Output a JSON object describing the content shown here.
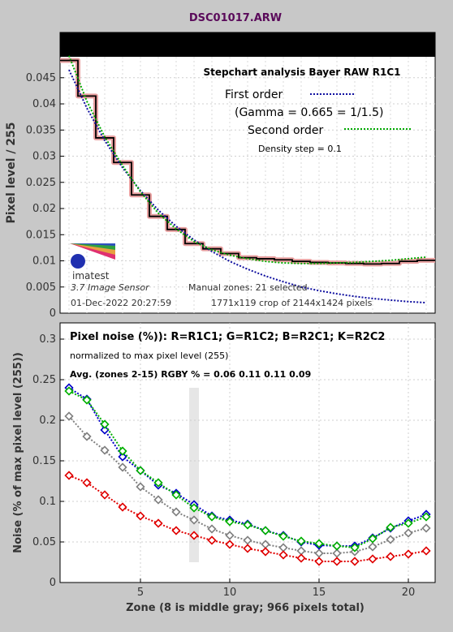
{
  "window": {
    "title": "DSC01017.ARW"
  },
  "chart_data": [
    {
      "type": "line",
      "ylabel": "Pixel level / 255",
      "ylim": [
        0,
        0.049
      ],
      "xlim": [
        0.5,
        21.5
      ],
      "grid": true,
      "yticks": [
        0,
        0.005,
        0.01,
        0.015,
        0.02,
        0.025,
        0.03,
        0.035,
        0.04,
        0.045
      ],
      "ytick_labels": [
        "0",
        "0.005",
        "0.01",
        "0.015",
        "0.02",
        "0.025",
        "0.03",
        "0.035",
        "0.04",
        "0.045"
      ],
      "title": "Stepchart analysis  Bayer RAW R1C1",
      "legend": {
        "first_order": "First order",
        "gamma": "(Gamma = 0.665 = 1/1.5)",
        "second_order": "Second order",
        "density_step": "Density step = 0.1"
      },
      "annotations": {
        "logo_text": "imatest",
        "version": "3.7  Image Sensor",
        "zones_info": "Manual zones:  21 selected",
        "timestamp": "01-Dec-2022 20:27:59",
        "crop": "1771x119 crop of 2144x1424 pixels"
      },
      "colors": {
        "first_order": "#1010a0",
        "second_order": "#00aa00",
        "measured": "#000000",
        "measured_band": "#e8a0a0"
      },
      "series": [
        {
          "name": "Measured",
          "x": [
            1,
            2,
            3,
            4,
            5,
            6,
            7,
            8,
            9,
            10,
            11,
            12,
            13,
            14,
            15,
            16,
            17,
            18,
            19,
            20,
            21
          ],
          "values": [
            0.0483,
            0.0415,
            0.0335,
            0.0288,
            0.0226,
            0.0185,
            0.016,
            0.0133,
            0.0123,
            0.0114,
            0.0106,
            0.0104,
            0.0102,
            0.0099,
            0.0097,
            0.0096,
            0.0095,
            0.0094,
            0.0095,
            0.0099,
            0.0101
          ]
        },
        {
          "name": "First order",
          "x": [
            1,
            2,
            3,
            4,
            5,
            6,
            7,
            8,
            9,
            10,
            11,
            12,
            13,
            14,
            15,
            16,
            17,
            18,
            19,
            20,
            21
          ],
          "values": [
            0.0465,
            0.0392,
            0.033,
            0.0278,
            0.0234,
            0.0197,
            0.0166,
            0.014,
            0.0118,
            0.0099,
            0.0084,
            0.0071,
            0.006,
            0.005,
            0.0043,
            0.0037,
            0.0032,
            0.0028,
            0.0025,
            0.0022,
            0.002
          ]
        },
        {
          "name": "Second order",
          "x": [
            1,
            2,
            3,
            4,
            5,
            6,
            7,
            8,
            9,
            10,
            11,
            12,
            13,
            14,
            15,
            16,
            17,
            18,
            19,
            20,
            21
          ],
          "values": [
            0.0492,
            0.0405,
            0.0337,
            0.0282,
            0.0232,
            0.0191,
            0.0161,
            0.0137,
            0.0121,
            0.0111,
            0.0104,
            0.0099,
            0.0096,
            0.0095,
            0.0095,
            0.0096,
            0.0097,
            0.0099,
            0.0101,
            0.0104,
            0.0107
          ]
        }
      ]
    },
    {
      "type": "line",
      "xlabel": "Zone  (8 is middle gray;  966 pixels total)",
      "ylabel": "Noise (% of max pixel level (255))",
      "ylim": [
        0,
        0.32
      ],
      "xlim": [
        0.5,
        21.5
      ],
      "grid": true,
      "xticks": [
        5,
        10,
        15,
        20
      ],
      "xtick_labels": [
        "5",
        "10",
        "15",
        "20"
      ],
      "yticks": [
        0,
        0.05,
        0.1,
        0.15,
        0.2,
        0.25,
        0.3
      ],
      "ytick_labels": [
        "0",
        "0.05",
        "0.1",
        "0.15",
        "0.2",
        "0.25",
        "0.3"
      ],
      "title": "Pixel noise (%)): R=R1C1; G=R1C2; B=R2C1; K=R2C2",
      "subtitle": "normalized to max pixel level (255)",
      "avg": "Avg. (zones 2-15) RGBY % = 0.06  0.11  0.11  0.09",
      "highlight_zone": 8,
      "colors": {
        "R": "#e00000",
        "G": "#00b000",
        "B": "#0000c8",
        "K": "#808080",
        "highlight": "#e6e6e6"
      },
      "x": [
        1,
        2,
        3,
        4,
        5,
        6,
        7,
        8,
        9,
        10,
        11,
        12,
        13,
        14,
        15,
        16,
        17,
        18,
        19,
        20,
        21
      ],
      "series": [
        {
          "name": "R",
          "values": [
            0.132,
            0.123,
            0.108,
            0.093,
            0.082,
            0.073,
            0.064,
            0.058,
            0.052,
            0.047,
            0.042,
            0.038,
            0.034,
            0.03,
            0.026,
            0.026,
            0.026,
            0.029,
            0.032,
            0.035,
            0.039
          ]
        },
        {
          "name": "G",
          "values": [
            0.236,
            0.225,
            0.195,
            0.162,
            0.138,
            0.123,
            0.108,
            0.092,
            0.081,
            0.075,
            0.071,
            0.064,
            0.057,
            0.051,
            0.048,
            0.045,
            0.043,
            0.054,
            0.068,
            0.073,
            0.081
          ]
        },
        {
          "name": "B",
          "values": [
            0.24,
            0.226,
            0.188,
            0.155,
            0.138,
            0.12,
            0.11,
            0.096,
            0.082,
            0.077,
            0.072,
            0.064,
            0.058,
            0.05,
            0.046,
            0.045,
            0.045,
            0.055,
            0.067,
            0.076,
            0.084
          ]
        },
        {
          "name": "K",
          "values": [
            0.205,
            0.18,
            0.163,
            0.142,
            0.118,
            0.102,
            0.087,
            0.077,
            0.066,
            0.058,
            0.052,
            0.047,
            0.043,
            0.039,
            0.036,
            0.036,
            0.038,
            0.044,
            0.053,
            0.061,
            0.067
          ]
        }
      ]
    }
  ]
}
